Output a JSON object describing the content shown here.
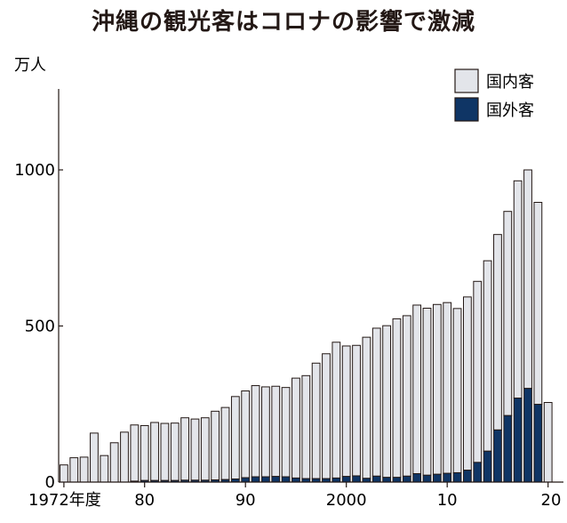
{
  "chart_data": {
    "type": "bar",
    "stacked": true,
    "title": "沖縄の観光客はコロナの影響で激減",
    "ylabel": "万人",
    "ylim": [
      0,
      1000
    ],
    "yticks": [
      {
        "value": 0,
        "label": "0"
      },
      {
        "value": 500,
        "label": "500"
      },
      {
        "value": 1000,
        "label": "1000"
      }
    ],
    "xticks": [
      {
        "year": 1972,
        "label": "1972年度"
      },
      {
        "year": 1980,
        "label": "80"
      },
      {
        "year": 1990,
        "label": "90"
      },
      {
        "year": 2000,
        "label": "2000"
      },
      {
        "year": 2010,
        "label": "10"
      },
      {
        "year": 2020,
        "label": "20"
      }
    ],
    "legend_position": "top-right",
    "years": [
      1972,
      1973,
      1974,
      1975,
      1976,
      1977,
      1978,
      1979,
      1980,
      1981,
      1982,
      1983,
      1984,
      1985,
      1986,
      1987,
      1988,
      1989,
      1990,
      1991,
      1992,
      1993,
      1994,
      1995,
      1996,
      1997,
      1998,
      1999,
      2000,
      2001,
      2002,
      2003,
      2004,
      2005,
      2006,
      2007,
      2008,
      2009,
      2010,
      2011,
      2012,
      2013,
      2014,
      2015,
      2016,
      2017,
      2018,
      2019,
      2020
    ],
    "series": [
      {
        "name": "国内客",
        "color": "#e3e5ea",
        "values": [
          55,
          78,
          80,
          157,
          85,
          126,
          160,
          180,
          176,
          186,
          183,
          184,
          200,
          196,
          200,
          220,
          231,
          264,
          278,
          292,
          288,
          289,
          286,
          320,
          330,
          370,
          400,
          435,
          418,
          418,
          452,
          474,
          486,
          508,
          514,
          540,
          535,
          544,
          547,
          526,
          555,
          580,
          610,
          626,
          654,
          696,
          700,
          647,
          255
        ]
      },
      {
        "name": "国外客",
        "color": "#0f3565",
        "values": [
          0,
          0,
          0,
          0,
          0,
          0,
          0,
          3,
          5,
          5,
          5,
          5,
          6,
          6,
          6,
          7,
          8,
          10,
          14,
          17,
          17,
          18,
          17,
          13,
          11,
          11,
          11,
          13,
          18,
          20,
          12,
          19,
          15,
          15,
          19,
          27,
          22,
          25,
          28,
          30,
          38,
          63,
          99,
          167,
          213,
          269,
          300,
          249,
          0
        ]
      }
    ]
  }
}
